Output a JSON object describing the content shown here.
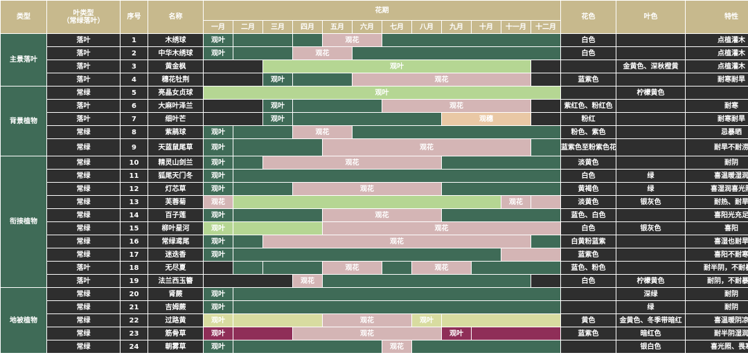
{
  "header": {
    "type": "类型",
    "leaf_type": "叶类型\n（常绿落叶）",
    "no": "序号",
    "name": "名称",
    "flower_period": "花期",
    "months": [
      "一月",
      "二月",
      "三月",
      "四月",
      "五月",
      "六月",
      "七月",
      "八月",
      "九月",
      "十月",
      "十一月",
      "十二月"
    ],
    "flower_color": "花色",
    "leaf_color": "叶色",
    "traits": "特性"
  },
  "palette": {
    "D": "#2e2e2e",
    "G": "#3f6b57",
    "L": "#b5d693",
    "P": "#d4b5b5",
    "Y": "#d8dca0",
    "O": "#e9c8a5",
    "M": "#8f2e58",
    "header": "#c7b98d"
  },
  "groups": [
    {
      "label": "主景落叶",
      "span": 4
    },
    {
      "label": "背景植物",
      "span": 5
    },
    {
      "label": "衔接植物",
      "span": 10
    },
    {
      "label": "地被植物",
      "span": 5
    }
  ],
  "rows": [
    {
      "leaf": "落叶",
      "no": "1",
      "name": "木绣球",
      "segs": [
        {
          "s": 1,
          "n": 1,
          "c": "G",
          "t": "观叶"
        },
        {
          "s": 2,
          "n": 2,
          "c": "G"
        },
        {
          "s": 4,
          "n": 1,
          "c": "G"
        },
        {
          "s": 5,
          "n": 2,
          "c": "P",
          "t": "观花"
        },
        {
          "s": 7,
          "n": 6,
          "c": "G"
        }
      ],
      "fc": "白色",
      "lc": "",
      "tr": "点植灌木"
    },
    {
      "leaf": "落叶",
      "no": "2",
      "name": "中华木绣球",
      "segs": [
        {
          "s": 1,
          "n": 1,
          "c": "G",
          "t": "观叶"
        },
        {
          "s": 2,
          "n": 2,
          "c": "G"
        },
        {
          "s": 4,
          "n": 2,
          "c": "P",
          "t": "观花"
        },
        {
          "s": 6,
          "n": 7,
          "c": "G"
        }
      ],
      "fc": "白色",
      "lc": "",
      "tr": "点植灌木"
    },
    {
      "leaf": "落叶",
      "no": "3",
      "name": "黄金枫",
      "segs": [
        {
          "s": 1,
          "n": 2,
          "c": "D"
        },
        {
          "s": 3,
          "n": 9,
          "c": "L",
          "t": "观叶"
        },
        {
          "s": 12,
          "n": 1,
          "c": "D"
        }
      ],
      "fc": "",
      "lc": "金黄色、深秋橙黄",
      "tr": "点植灌木"
    },
    {
      "leaf": "落叶",
      "no": "4",
      "name": "穗花牡荆",
      "segs": [
        {
          "s": 1,
          "n": 2,
          "c": "D"
        },
        {
          "s": 3,
          "n": 1,
          "c": "G",
          "t": "观叶"
        },
        {
          "s": 4,
          "n": 2,
          "c": "G"
        },
        {
          "s": 6,
          "n": 6,
          "c": "P",
          "t": "观花"
        },
        {
          "s": 12,
          "n": 1,
          "c": "D"
        }
      ],
      "fc": "蓝紫色",
      "lc": "",
      "tr": "耐寒耐旱"
    },
    {
      "leaf": "常绿",
      "no": "5",
      "name": "亮晶女贞球",
      "segs": [
        {
          "s": 1,
          "n": 12,
          "c": "L",
          "t": "观叶"
        }
      ],
      "fc": "",
      "lc": "柠檬黄色",
      "tr": ""
    },
    {
      "leaf": "落叶",
      "no": "6",
      "name": "大麻叶泽兰",
      "segs": [
        {
          "s": 1,
          "n": 2,
          "c": "D"
        },
        {
          "s": 3,
          "n": 1,
          "c": "G",
          "t": "观叶"
        },
        {
          "s": 4,
          "n": 3,
          "c": "G"
        },
        {
          "s": 7,
          "n": 5,
          "c": "P",
          "t": "观花"
        },
        {
          "s": 12,
          "n": 1,
          "c": "D"
        }
      ],
      "fc": "紫红色、粉红色",
      "lc": "",
      "tr": "耐寒"
    },
    {
      "leaf": "落叶",
      "no": "7",
      "name": "细叶芒",
      "segs": [
        {
          "s": 1,
          "n": 2,
          "c": "D"
        },
        {
          "s": 3,
          "n": 1,
          "c": "G",
          "t": "观叶"
        },
        {
          "s": 4,
          "n": 5,
          "c": "G"
        },
        {
          "s": 9,
          "n": 3,
          "c": "O",
          "t": "观穗"
        },
        {
          "s": 12,
          "n": 1,
          "c": "D"
        }
      ],
      "fc": "粉红",
      "lc": "",
      "tr": "耐寒耐旱"
    },
    {
      "leaf": "常绿",
      "no": "8",
      "name": "紫鹃球",
      "segs": [
        {
          "s": 1,
          "n": 1,
          "c": "G",
          "t": "观叶"
        },
        {
          "s": 2,
          "n": 2,
          "c": "G"
        },
        {
          "s": 4,
          "n": 2,
          "c": "P",
          "t": "观花"
        },
        {
          "s": 6,
          "n": 7,
          "c": "G"
        }
      ],
      "fc": "粉色、紫色",
      "lc": "",
      "tr": "忌暴晒"
    },
    {
      "leaf": "常绿",
      "no": "9",
      "name": "天蓝鼠尾草",
      "segs": [
        {
          "s": 1,
          "n": 1,
          "c": "G",
          "t": "观叶"
        },
        {
          "s": 2,
          "n": 3,
          "c": "G"
        },
        {
          "s": 5,
          "n": 7,
          "c": "P",
          "t": "观花"
        },
        {
          "s": 12,
          "n": 1,
          "c": "G"
        }
      ],
      "fc": "蓝紫色至粉紫色花",
      "lc": "",
      "tr": "耐旱不耐涝",
      "tall": true
    },
    {
      "leaf": "常绿",
      "no": "10",
      "name": "精灵山剑兰",
      "segs": [
        {
          "s": 1,
          "n": 1,
          "c": "G",
          "t": "观叶"
        },
        {
          "s": 2,
          "n": 1,
          "c": "G"
        },
        {
          "s": 3,
          "n": 6,
          "c": "P",
          "t": "观花"
        },
        {
          "s": 9,
          "n": 4,
          "c": "G"
        }
      ],
      "fc": "淡黄色",
      "lc": "",
      "tr": "耐阴"
    },
    {
      "leaf": "常绿",
      "no": "11",
      "name": "狐尾天门冬",
      "segs": [
        {
          "s": 1,
          "n": 1,
          "c": "G",
          "t": "观叶"
        },
        {
          "s": 2,
          "n": 11,
          "c": "G"
        }
      ],
      "fc": "白色",
      "lc": "绿",
      "tr": "喜温暖湿润"
    },
    {
      "leaf": "常绿",
      "no": "12",
      "name": "灯芯草",
      "segs": [
        {
          "s": 1,
          "n": 1,
          "c": "G",
          "t": "观叶"
        },
        {
          "s": 2,
          "n": 2,
          "c": "G"
        },
        {
          "s": 4,
          "n": 5,
          "c": "P",
          "t": "观花"
        },
        {
          "s": 9,
          "n": 4,
          "c": "G"
        }
      ],
      "fc": "黄褐色",
      "lc": "绿",
      "tr": "喜湿润喜光照"
    },
    {
      "leaf": "常绿",
      "no": "13",
      "name": "芙蓉菊",
      "segs": [
        {
          "s": 1,
          "n": 1,
          "c": "P",
          "t": "观花"
        },
        {
          "s": 2,
          "n": 9,
          "c": "L"
        },
        {
          "s": 11,
          "n": 1,
          "c": "P",
          "t": "观花"
        },
        {
          "s": 12,
          "n": 1,
          "c": "P"
        }
      ],
      "fc": "淡黄色",
      "lc": "银灰色",
      "tr": "耐热、耐旱"
    },
    {
      "leaf": "常绿",
      "no": "14",
      "name": "百子莲",
      "segs": [
        {
          "s": 1,
          "n": 1,
          "c": "G",
          "t": "观叶"
        },
        {
          "s": 2,
          "n": 3,
          "c": "G"
        },
        {
          "s": 5,
          "n": 4,
          "c": "P",
          "t": "观花"
        },
        {
          "s": 9,
          "n": 4,
          "c": "G"
        }
      ],
      "fc": "蓝色、白色",
      "lc": "",
      "tr": "喜阳光充足"
    },
    {
      "leaf": "常绿",
      "no": "15",
      "name": "柳叶星河",
      "segs": [
        {
          "s": 1,
          "n": 1,
          "c": "L",
          "t": "观叶"
        },
        {
          "s": 2,
          "n": 3,
          "c": "L"
        },
        {
          "s": 5,
          "n": 8,
          "c": "P",
          "t": "观花"
        }
      ],
      "fc": "白色",
      "lc": "银灰色",
      "tr": "喜阳"
    },
    {
      "leaf": "常绿",
      "no": "16",
      "name": "常绿鸢尾",
      "segs": [
        {
          "s": 1,
          "n": 1,
          "c": "G",
          "t": "观叶"
        },
        {
          "s": 2,
          "n": 1,
          "c": "G"
        },
        {
          "s": 3,
          "n": 9,
          "c": "P",
          "t": "观花"
        },
        {
          "s": 12,
          "n": 1,
          "c": "G"
        }
      ],
      "fc": "白黄粉蓝紫",
      "lc": "",
      "tr": "喜湿也耐旱"
    },
    {
      "leaf": "常绿",
      "no": "17",
      "name": "迷迭香",
      "segs": [
        {
          "s": 1,
          "n": 1,
          "c": "G",
          "t": "观叶"
        },
        {
          "s": 2,
          "n": 9,
          "c": "G"
        },
        {
          "s": 11,
          "n": 2,
          "c": "P"
        }
      ],
      "fc": "蓝紫色",
      "lc": "",
      "tr": "喜阳不耐寒"
    },
    {
      "leaf": "落叶",
      "no": "18",
      "name": "无尽夏",
      "segs": [
        {
          "s": 1,
          "n": 1,
          "c": "D"
        },
        {
          "s": 2,
          "n": 1,
          "c": "G"
        },
        {
          "s": 3,
          "n": 2,
          "c": "G"
        },
        {
          "s": 5,
          "n": 2,
          "c": "P",
          "t": "观花"
        },
        {
          "s": 7,
          "n": 1,
          "c": "G"
        },
        {
          "s": 8,
          "n": 2,
          "c": "P",
          "t": "观花"
        },
        {
          "s": 10,
          "n": 3,
          "c": "G"
        }
      ],
      "fc": "蓝色、粉色",
      "lc": "",
      "tr": "耐半阴，不耐暴晒"
    },
    {
      "leaf": "落叶",
      "no": "19",
      "name": "法兰西玉簪",
      "segs": [
        {
          "s": 1,
          "n": 3,
          "c": "D"
        },
        {
          "s": 4,
          "n": 1,
          "c": "P",
          "t": "观花"
        },
        {
          "s": 5,
          "n": 7,
          "c": "G"
        },
        {
          "s": 12,
          "n": 1,
          "c": "D"
        }
      ],
      "fc": "白色",
      "lc": "柠檬黄色",
      "tr": "耐阴，不耐暴晒"
    },
    {
      "leaf": "常绿",
      "no": "20",
      "name": "肾蕨",
      "segs": [
        {
          "s": 1,
          "n": 1,
          "c": "G",
          "t": "观叶"
        },
        {
          "s": 2,
          "n": 11,
          "c": "G"
        }
      ],
      "fc": "",
      "lc": "深绿",
      "tr": "耐阴"
    },
    {
      "leaf": "常绿",
      "no": "21",
      "name": "吉姆蕨",
      "segs": [
        {
          "s": 1,
          "n": 1,
          "c": "G",
          "t": "观叶"
        },
        {
          "s": 2,
          "n": 11,
          "c": "G"
        }
      ],
      "fc": "",
      "lc": "绿",
      "tr": "耐阴"
    },
    {
      "leaf": "常绿",
      "no": "22",
      "name": "过路黄",
      "segs": [
        {
          "s": 1,
          "n": 1,
          "c": "Y",
          "t": "观叶"
        },
        {
          "s": 2,
          "n": 3,
          "c": "Y"
        },
        {
          "s": 5,
          "n": 3,
          "c": "P",
          "t": "观花"
        },
        {
          "s": 8,
          "n": 1,
          "c": "Y",
          "t": "观叶"
        },
        {
          "s": 9,
          "n": 4,
          "c": "Y"
        }
      ],
      "fc": "黄色",
      "lc": "金黄色、冬季带暗红",
      "tr": "喜温暖阴凉"
    },
    {
      "leaf": "常绿",
      "no": "23",
      "name": "筋骨草",
      "segs": [
        {
          "s": 1,
          "n": 1,
          "c": "M",
          "t": "观叶"
        },
        {
          "s": 2,
          "n": 2,
          "c": "M"
        },
        {
          "s": 4,
          "n": 5,
          "c": "P",
          "t": "观花"
        },
        {
          "s": 9,
          "n": 1,
          "c": "M",
          "t": "观叶"
        },
        {
          "s": 10,
          "n": 3,
          "c": "M"
        }
      ],
      "fc": "蓝紫色",
      "lc": "暗红色",
      "tr": "耐半阴湿润"
    },
    {
      "leaf": "常绿",
      "no": "24",
      "name": "朝雾草",
      "segs": [
        {
          "s": 1,
          "n": 1,
          "c": "G",
          "t": "观叶"
        },
        {
          "s": 2,
          "n": 5,
          "c": "G"
        },
        {
          "s": 7,
          "n": 1,
          "c": "P",
          "t": "观花"
        },
        {
          "s": 8,
          "n": 5,
          "c": "G"
        }
      ],
      "fc": "",
      "lc": "银白色",
      "tr": "喜光照、畏寒"
    }
  ]
}
